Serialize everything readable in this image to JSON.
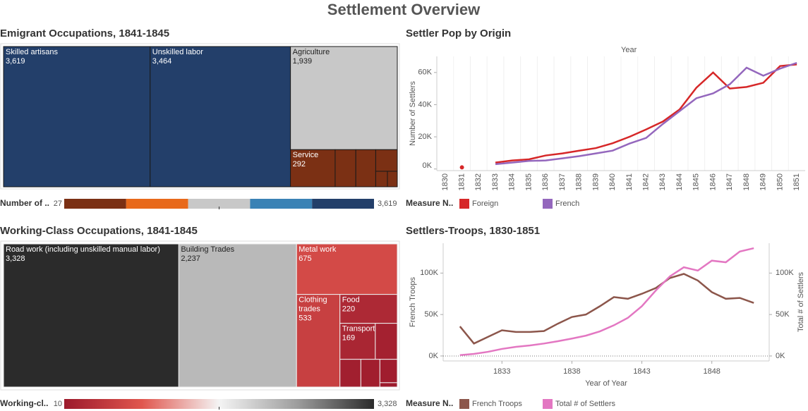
{
  "title": "Settlement Overview",
  "chart_data": [
    {
      "type": "treemap",
      "title": "Emigrant Occupations, 1841-1845",
      "categories": [
        "Skilled artisans",
        "Unskilled labor",
        "Agriculture",
        "Service",
        null,
        null,
        null,
        null,
        null
      ],
      "values": [
        3619,
        3464,
        1939,
        292,
        135,
        130,
        82,
        32,
        27
      ],
      "value_labels": [
        "3,619",
        "3,464",
        "1,939",
        "292",
        null,
        null,
        null,
        null,
        null
      ],
      "color_legend": {
        "title": "Number of ..",
        "scale": "stepped",
        "ticks": [
          27,
          {
            "value": 3619,
            "label": "3,619"
          }
        ],
        "colors": [
          "#7b3014",
          "#e8691b",
          "#c8c8c8",
          "#3a82b5",
          "#233f6a"
        ]
      }
    },
    {
      "type": "line",
      "title": "Settler Pop by Origin",
      "x_header": "Year",
      "categories": [
        "1830",
        "1831",
        "1832",
        "1833",
        "1834",
        "1835",
        "1836",
        "1837",
        "1838",
        "1839",
        "1840",
        "1841",
        "1842",
        "1843",
        "1844",
        "1845",
        "1846",
        "1847",
        "1848",
        "1849",
        "1850",
        "1851"
      ],
      "ylabel": "Number of Settlers",
      "ylim": [
        -1000,
        70000
      ],
      "yticks": [
        {
          "value": 0,
          "label": "0K"
        },
        {
          "value": 20000,
          "label": "20K"
        },
        {
          "value": 40000,
          "label": "40K"
        },
        {
          "value": 60000,
          "label": "60K"
        }
      ],
      "legend_title": "Measure N..",
      "series": [
        {
          "name": "Foreign",
          "color": "#d62728",
          "values": [
            null,
            1000,
            null,
            4000,
            5300,
            6000,
            8400,
            9700,
            11400,
            13000,
            16000,
            20000,
            24600,
            29500,
            37000,
            50500,
            60000,
            50000,
            51000,
            53600,
            64000,
            65000
          ]
        },
        {
          "name": "French",
          "color": "#9467bd",
          "values": [
            null,
            null,
            null,
            3000,
            4000,
            5000,
            5300,
            6600,
            8000,
            9700,
            11400,
            15800,
            19300,
            28000,
            36000,
            44000,
            47000,
            52700,
            63000,
            58000,
            62400,
            66000
          ]
        }
      ]
    },
    {
      "type": "treemap",
      "title": "Working-Class Occupations, 1841-1845",
      "categories": [
        "Road work (including unskilled manual labor)",
        "Building Trades",
        "Metal work",
        "Clothing trades",
        "Food",
        "Transport",
        null,
        null,
        null,
        null,
        null
      ],
      "values": [
        3328,
        2237,
        675,
        533,
        220,
        169,
        105,
        77,
        70,
        54,
        10
      ],
      "value_labels": [
        "3,328",
        "2,237",
        "675",
        "533",
        "220",
        "169",
        null,
        null,
        null,
        null,
        null
      ],
      "color_legend": {
        "title": "Working-cl..",
        "scale": "continuous",
        "ticks": [
          10,
          {
            "value": 3328,
            "label": "3,328"
          }
        ],
        "colors": [
          "#9c1a2c",
          "#e0564e",
          "#f4f4f4",
          "#9e9e9e",
          "#2b2b2b"
        ]
      }
    },
    {
      "type": "dual_line",
      "title": "Settlers-Troops, 1830-1851",
      "x": [
        1830,
        1831,
        1832,
        1833,
        1834,
        1835,
        1836,
        1837,
        1838,
        1839,
        1840,
        1841,
        1842,
        1843,
        1844,
        1845,
        1846,
        1847,
        1848,
        1849,
        1850,
        1851
      ],
      "xlim": [
        1828.8,
        1852.1
      ],
      "xticks": [
        1833,
        1838,
        1843,
        1848
      ],
      "xlabel": "Year of Year",
      "ylabel": "French Troops",
      "y2label": "Total # of Settlers",
      "ylim": [
        -6000,
        136000
      ],
      "yticks": [
        {
          "value": 0,
          "label": "0K"
        },
        {
          "value": 50000,
          "label": "50K"
        },
        {
          "value": 100000,
          "label": "100K"
        }
      ],
      "y2lim": [
        -6000,
        136000
      ],
      "y2ticks": [
        {
          "value": 0,
          "label": "0K"
        },
        {
          "value": 50000,
          "label": "50K"
        },
        {
          "value": 100000,
          "label": "100K"
        }
      ],
      "legend_title": "Measure N..",
      "series": [
        {
          "name": "French Troops",
          "color": "#8c564b",
          "values": [
            35600,
            15000,
            23000,
            31000,
            29000,
            29000,
            30000,
            39000,
            47000,
            50000,
            60000,
            71000,
            69000,
            75000,
            82000,
            94000,
            99000,
            91000,
            77000,
            69000,
            70000,
            64000
          ]
        },
        {
          "name": "Total # of Settlers",
          "color": "#e377c2",
          "axis": "y2",
          "values": [
            1000,
            2500,
            5000,
            8500,
            11000,
            12700,
            15000,
            17800,
            21000,
            24500,
            29700,
            37000,
            46000,
            60000,
            79000,
            96000,
            107000,
            103000,
            115000,
            113000,
            126000,
            130000
          ]
        }
      ]
    }
  ]
}
